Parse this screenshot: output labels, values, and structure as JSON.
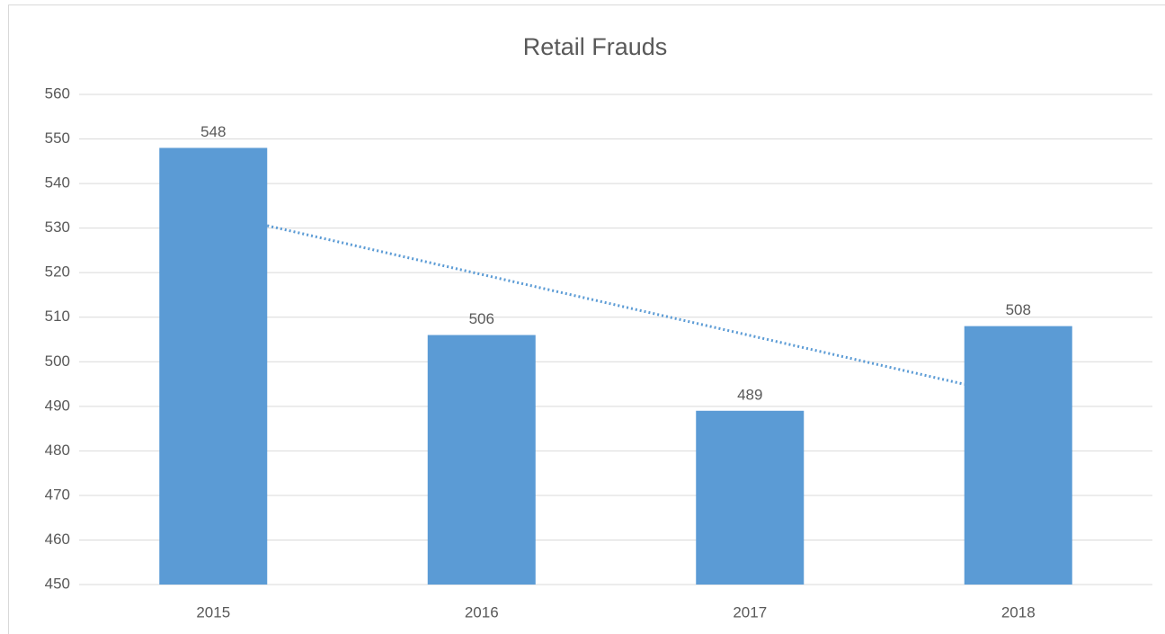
{
  "chart_data": {
    "type": "bar",
    "title": "Retail Frauds",
    "categories": [
      "2015",
      "2016",
      "2017",
      "2018"
    ],
    "values": [
      548,
      506,
      489,
      508
    ],
    "color": "#5b9bd5",
    "ylim": [
      450,
      560
    ],
    "yticks": [
      450,
      460,
      470,
      480,
      490,
      500,
      510,
      520,
      530,
      540,
      550,
      560
    ],
    "grid": true,
    "trendline": "linear",
    "data_labels": true
  }
}
